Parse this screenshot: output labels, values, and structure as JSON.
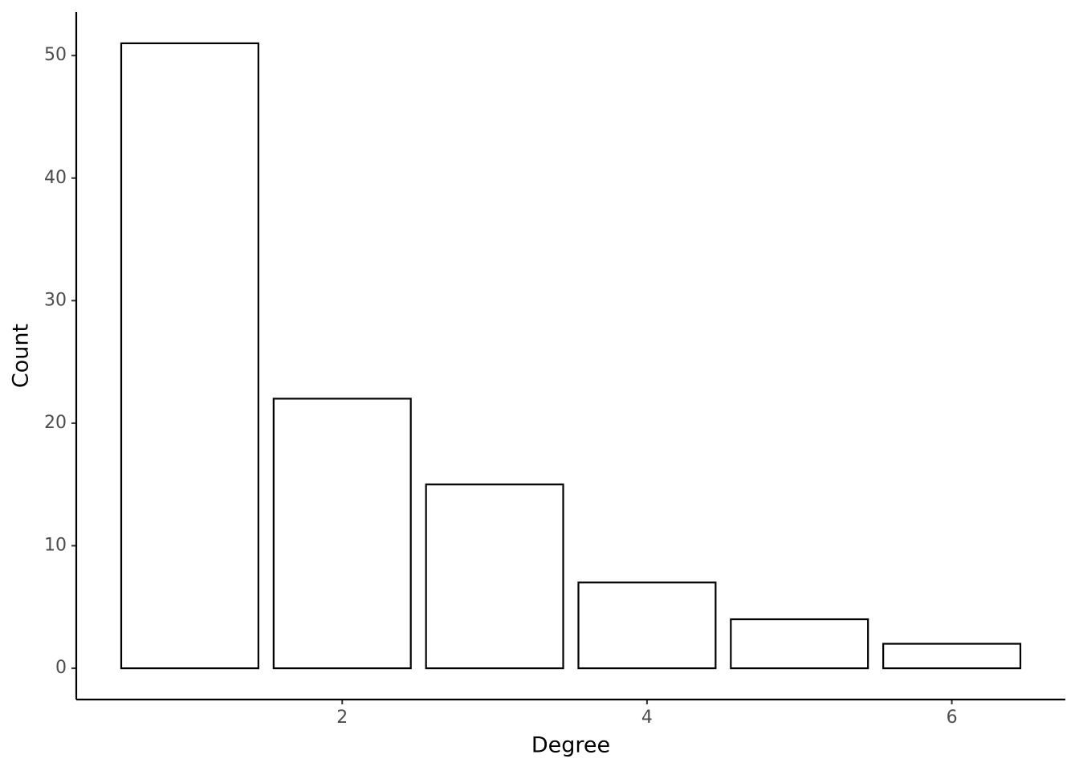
{
  "chart_data": {
    "type": "bar",
    "x": [
      1,
      2,
      3,
      4,
      5,
      6
    ],
    "values": [
      51,
      22,
      15,
      7,
      4,
      2
    ],
    "x_label": "Degree",
    "y_label": "Count",
    "xlim": [
      0.255,
      6.745
    ],
    "xticks": [
      2,
      4,
      6
    ],
    "ylim": [
      -2.55,
      53.55
    ],
    "yticks": [
      0,
      10,
      20,
      30,
      40,
      50
    ],
    "fill": "#ffffff",
    "color": "#000000",
    "grid": false
  }
}
